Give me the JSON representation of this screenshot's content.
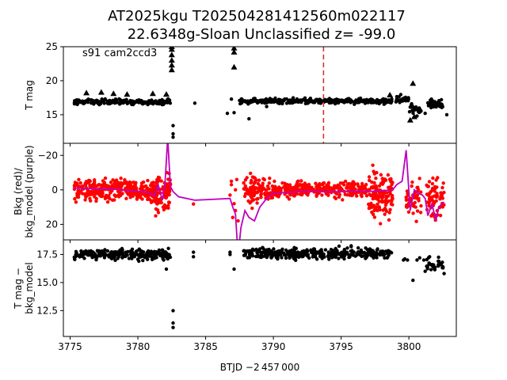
{
  "chart_data": {
    "type": "scatter",
    "title_line1": "AT2025kgu  T202504281412560m022117",
    "title_line2": "22.6348g-Sloan Unclassified z= -99.0",
    "annotation": "s91 cam2ccd3",
    "xlabel": "BTJD −2 457 000",
    "xlim": [
      3774.5,
      3803.5
    ],
    "x_ticks": [
      3775,
      3780,
      3785,
      3790,
      3795,
      3800
    ],
    "x_tick_labels": [
      "3775",
      "3780",
      "3785",
      "3790",
      "3795",
      "3800"
    ],
    "marker_line_x": 3793.7,
    "colors": {
      "points": "#000000",
      "bkg": "#ff0000",
      "model": "#bf00bf",
      "marker": "#d62728"
    },
    "panels": [
      {
        "ylabel": [
          "T mag"
        ],
        "ylim": [
          25.0,
          10.8
        ],
        "y_ticks": [
          15,
          20,
          25
        ],
        "y_tick_labels": [
          "15",
          "20",
          "25"
        ],
        "segments": [
          {
            "x": [
              3775.3,
              3782.4
            ],
            "y": 16.9,
            "jitter": 0.35,
            "n": 230
          },
          {
            "x": [
              3787.5,
              3798.8
            ],
            "y": 17.0,
            "jitter": 0.35,
            "n": 340
          },
          {
            "x": [
              3799.0,
              3800.0
            ],
            "y": 17.3,
            "jitter": 0.5,
            "n": 30
          },
          {
            "x": [
              3800.0,
              3800.9
            ],
            "y": 15.9,
            "jitter": 0.7,
            "n": 25
          },
          {
            "x": [
              3801.4,
              3802.5
            ],
            "y": 16.6,
            "jitter": 0.6,
            "n": 40
          }
        ],
        "points": [
          [
            3782.6,
            12.2
          ],
          [
            3782.6,
            13.4
          ],
          [
            3782.6,
            11.7
          ],
          [
            3784.2,
            16.7
          ],
          [
            3786.9,
            17.3
          ],
          [
            3786.6,
            15.2
          ],
          [
            3787.1,
            15.3
          ],
          [
            3788.2,
            14.4
          ],
          [
            3789.5,
            16.2
          ],
          [
            3802.8,
            15.0
          ],
          [
            3801.2,
            15.2
          ],
          [
            3800.6,
            14.8
          ]
        ],
        "triangles": [
          [
            3776.2,
            18.2
          ],
          [
            3777.3,
            18.3
          ],
          [
            3778.2,
            18.1
          ],
          [
            3779.2,
            18.0
          ],
          [
            3781.1,
            18.1
          ],
          [
            3782.1,
            18.0
          ],
          [
            3782.5,
            21.6
          ],
          [
            3782.5,
            22.3
          ],
          [
            3782.5,
            23.0
          ],
          [
            3782.5,
            23.8
          ],
          [
            3782.5,
            24.6
          ],
          [
            3782.5,
            25.0
          ],
          [
            3787.1,
            22.0
          ],
          [
            3787.1,
            24.2
          ],
          [
            3787.1,
            24.8
          ],
          [
            3798.6,
            17.9
          ],
          [
            3800.3,
            19.6
          ],
          [
            3800.1,
            14.2
          ],
          [
            3800.4,
            14.7
          ]
        ]
      },
      {
        "ylabel": [
          "Bkg (red)/",
          "bkg_model (purple)"
        ],
        "ylim": [
          -27,
          29
        ],
        "y_ticks": [
          -20,
          0,
          20
        ],
        "y_tick_labels": [
          "−20",
          "0",
          "20"
        ],
        "red_segments": [
          {
            "x": [
              3775.3,
              3780.0
            ],
            "y": 0.0,
            "jitter": 5.5,
            "n": 230
          },
          {
            "x": [
              3780.0,
              3781.3
            ],
            "y": 1.5,
            "jitter": 6.5,
            "n": 80
          },
          {
            "x": [
              3781.3,
              3782.4
            ],
            "y": 2.0,
            "jitter": 11.0,
            "n": 90
          },
          {
            "x": [
              3787.8,
              3790.0
            ],
            "y": 0.0,
            "jitter": 7.0,
            "n": 110
          },
          {
            "x": [
              3790.0,
              3797.0
            ],
            "y": 0.0,
            "jitter": 4.0,
            "n": 300
          },
          {
            "x": [
              3797.0,
              3798.8
            ],
            "y": 2.0,
            "jitter": 12.0,
            "n": 140
          },
          {
            "x": [
              3799.8,
              3800.9
            ],
            "y": 5.0,
            "jitter": 9.0,
            "n": 45
          },
          {
            "x": [
              3801.3,
              3802.6
            ],
            "y": 6.0,
            "jitter": 11.0,
            "n": 70
          }
        ],
        "red_points": [
          [
            3784.1,
            8.2
          ],
          [
            3787.1,
            8.0
          ],
          [
            3787.2,
            12.0
          ],
          [
            3787.0,
            16.0
          ],
          [
            3787.3,
            -6.0
          ],
          [
            3786.9,
            -5.0
          ],
          [
            3787.4,
            18.0
          ],
          [
            3787.2,
            0.0
          ],
          [
            3786.8,
            3.0
          ],
          [
            3786.9,
            -3.0
          ]
        ],
        "model_line": {
          "x": [
            3775.3,
            3776.5,
            3777.5,
            3778.5,
            3779.5,
            3780.3,
            3780.8,
            3781.2,
            3781.5,
            3781.8,
            3782.0,
            3782.2,
            3782.4,
            3782.6,
            3783.0,
            3784.2,
            3786.8,
            3787.0,
            3787.2,
            3787.4,
            3787.6,
            3787.9,
            3788.2,
            3788.6,
            3789.0,
            3789.5,
            3790.0,
            3791.0,
            3792.0,
            3793.0,
            3794.0,
            3795.0,
            3796.0,
            3797.0,
            3798.0,
            3798.8,
            3799.1,
            3799.5,
            3799.8,
            3800.1,
            3800.4,
            3800.7,
            3801.0,
            3801.2,
            3801.4,
            3801.7,
            3802.0,
            3802.2,
            3802.6
          ],
          "y": [
            -1.0,
            -0.8,
            -0.5,
            -0.2,
            0.5,
            1.0,
            1.5,
            3.5,
            -3.0,
            6.0,
            -4.0,
            -30.0,
            -2.0,
            1.0,
            4.0,
            6.0,
            5.0,
            10.0,
            14.0,
            38.0,
            22.0,
            12.0,
            16.0,
            18.0,
            10.0,
            5.0,
            2.0,
            1.5,
            1.0,
            1.0,
            1.2,
            1.0,
            0.8,
            1.0,
            0.5,
            0.0,
            -3.0,
            -5.0,
            -23.0,
            12.0,
            0.0,
            2.0,
            3.0,
            5.0,
            15.0,
            8.0,
            18.0,
            10.0,
            7.0
          ]
        }
      },
      {
        "ylabel": [
          "T mag −",
          "bkg_model"
        ],
        "ylim": [
          18.8,
          10.2
        ],
        "y_ticks": [
          12.5,
          15.0,
          17.5
        ],
        "y_tick_labels": [
          "12.5",
          "15.0",
          "17.5"
        ],
        "segments": [
          {
            "x": [
              3775.3,
              3782.4
            ],
            "y": 17.5,
            "jitter": 0.45,
            "n": 230
          },
          {
            "x": [
              3787.8,
              3798.8
            ],
            "y": 17.6,
            "jitter": 0.45,
            "n": 340
          },
          {
            "x": [
              3801.3,
              3802.6
            ],
            "y": 16.6,
            "jitter": 0.6,
            "n": 35
          }
        ],
        "points": [
          [
            3782.6,
            11.0
          ],
          [
            3782.6,
            11.4
          ],
          [
            3782.6,
            12.5
          ],
          [
            3784.1,
            17.3
          ],
          [
            3784.1,
            17.7
          ],
          [
            3786.8,
            17.5
          ],
          [
            3786.8,
            17.7
          ],
          [
            3787.1,
            16.2
          ],
          [
            3799.6,
            17.0
          ],
          [
            3799.7,
            17.1
          ],
          [
            3799.9,
            17.0
          ],
          [
            3800.3,
            15.2
          ],
          [
            3800.6,
            17.0
          ],
          [
            3800.8,
            17.2
          ],
          [
            3801.1,
            17.0
          ],
          [
            3801.2,
            16.0
          ],
          [
            3802.6,
            15.8
          ],
          [
            3782.1,
            16.2
          ],
          [
            3781.9,
            17.0
          ]
        ]
      }
    ]
  }
}
